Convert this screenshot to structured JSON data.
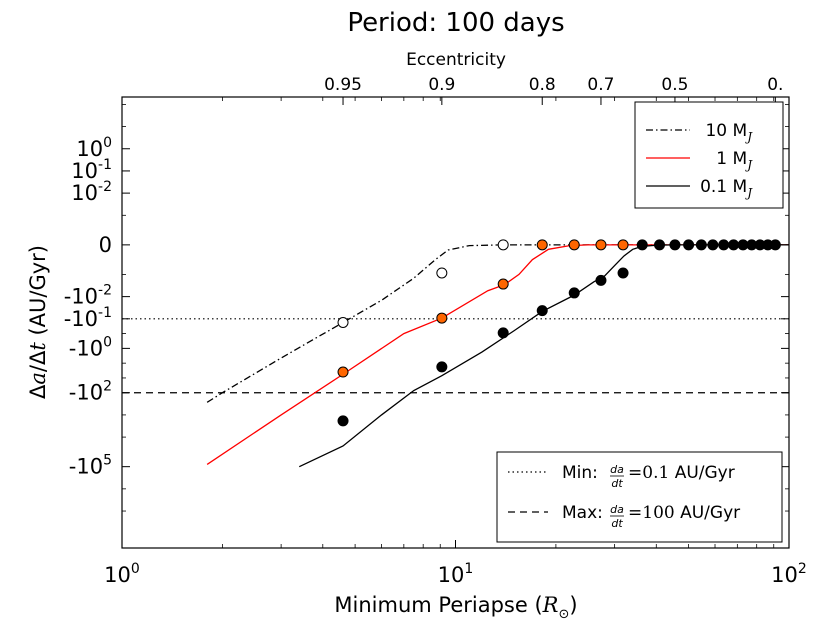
{
  "chart_data": {
    "type": "line",
    "title": "Period: 100 days",
    "top_axis_label": "Eccentricity",
    "top_ticks": [
      {
        "x": 4.6,
        "label": "0.95"
      },
      {
        "x": 9.1,
        "label": "0.9"
      },
      {
        "x": 18.2,
        "label": "0.8"
      },
      {
        "x": 27.3,
        "label": "0.7"
      },
      {
        "x": 45.5,
        "label": "0.5"
      },
      {
        "x": 91.0,
        "label": "0."
      }
    ],
    "xlabel": "Minimum Periapse (R⊙)",
    "xscale": "log",
    "xlim": [
      1,
      100
    ],
    "x_ticks": [
      {
        "x": 1,
        "base": "10",
        "exp": "0"
      },
      {
        "x": 10,
        "base": "10",
        "exp": "1"
      },
      {
        "x": 100,
        "base": "10",
        "exp": "2"
      }
    ],
    "ylabel": "Δa/Δt (AU/Gyr)",
    "yscale": "symlog (positions on plotted scale)",
    "ylim": [
      -4.1,
      2.0
    ],
    "y_ticks": [
      {
        "y": 1.3,
        "base": "10",
        "exp": "0"
      },
      {
        "y": 1.0,
        "base": "10",
        "exp": "-1"
      },
      {
        "y": 0.7,
        "base": "10",
        "exp": "-2"
      },
      {
        "y": 0.0,
        "base": "0",
        "exp": ""
      },
      {
        "y": -0.7,
        "base": "-10",
        "exp": "-2"
      },
      {
        "y": -1.0,
        "base": "-10",
        "exp": "-1"
      },
      {
        "y": -1.4,
        "base": "-10",
        "exp": "0"
      },
      {
        "y": -2.0,
        "base": "-10",
        "exp": "2"
      },
      {
        "y": -3.0,
        "base": "-10",
        "exp": "5"
      }
    ],
    "hlines": [
      {
        "name": "min",
        "y": -1.0,
        "style": "dotted",
        "legend_prefix": "Min: ",
        "rate": "0.1",
        "legend_suffix": " AU/Gyr"
      },
      {
        "name": "max",
        "y": -2.0,
        "style": "dashed",
        "legend_prefix": "Max: ",
        "rate": "100",
        "legend_suffix": " AU/Gyr"
      }
    ],
    "rate_frac": {
      "num": "da",
      "den": "dt"
    },
    "series": [
      {
        "name": "10 M_J",
        "label_base": "10 M",
        "label_sub": "J",
        "color": "#000000",
        "dash": "7,3,1.5,3",
        "line": [
          [
            1.8,
            -2.13
          ],
          [
            2.0,
            -2.0
          ],
          [
            3.0,
            -1.53
          ],
          [
            4.6,
            -1.05
          ],
          [
            6.0,
            -0.75
          ],
          [
            7.5,
            -0.45
          ],
          [
            8.7,
            -0.2
          ],
          [
            9.5,
            -0.07
          ],
          [
            11,
            -0.01
          ],
          [
            13.9,
            0.0
          ],
          [
            100,
            0.0
          ]
        ],
        "points": [
          [
            4.6,
            -1.05
          ],
          [
            9.1,
            -0.38
          ],
          [
            13.9,
            0.0
          ]
        ],
        "marker_fill": "#ffffff"
      },
      {
        "name": "1 M_J",
        "label_base": "1 M",
        "label_sub": "J",
        "color": "#ff0000",
        "dash": "",
        "line": [
          [
            1.8,
            -2.97
          ],
          [
            3.0,
            -2.3
          ],
          [
            4.6,
            -1.75
          ],
          [
            7.0,
            -1.2
          ],
          [
            9.1,
            -0.99
          ],
          [
            12.5,
            -0.62
          ],
          [
            14.0,
            -0.54
          ],
          [
            15.5,
            -0.4
          ],
          [
            17.0,
            -0.2
          ],
          [
            19,
            -0.06
          ],
          [
            22,
            -0.01
          ],
          [
            25,
            0.0
          ],
          [
            100,
            0.0
          ]
        ],
        "points": [
          [
            4.6,
            -1.72
          ],
          [
            9.1,
            -0.99
          ],
          [
            13.9,
            -0.53
          ],
          [
            18.2,
            0.0
          ],
          [
            22.7,
            0.0
          ],
          [
            27.3,
            0.0
          ],
          [
            31.8,
            0.0
          ]
        ],
        "marker_fill": "#ff6600"
      },
      {
        "name": "0.1 M_J",
        "label_base": "0.1 M",
        "label_sub": "J",
        "color": "#000000",
        "dash": "",
        "line": [
          [
            3.4,
            -3.0
          ],
          [
            4.6,
            -2.72
          ],
          [
            6.0,
            -2.3
          ],
          [
            7.5,
            -1.97
          ],
          [
            9.1,
            -1.77
          ],
          [
            12.0,
            -1.45
          ],
          [
            15.0,
            -1.16
          ],
          [
            18.2,
            -0.9
          ],
          [
            22.7,
            -0.68
          ],
          [
            26.0,
            -0.5
          ],
          [
            28.0,
            -0.42
          ],
          [
            30.0,
            -0.28
          ],
          [
            32.0,
            -0.15
          ],
          [
            34.0,
            -0.06
          ],
          [
            36.3,
            -0.02
          ],
          [
            40.0,
            -0.005
          ],
          [
            45.0,
            0.0
          ],
          [
            100,
            0.0
          ]
        ],
        "points": [
          [
            4.6,
            -2.38
          ],
          [
            9.1,
            -1.65
          ],
          [
            13.9,
            -1.19
          ],
          [
            18.2,
            -0.89
          ],
          [
            22.7,
            -0.65
          ],
          [
            27.3,
            -0.48
          ],
          [
            31.8,
            -0.38
          ],
          [
            36.3,
            0.0
          ],
          [
            40.9,
            0.0
          ],
          [
            45.5,
            0.0
          ],
          [
            50.0,
            0.0
          ],
          [
            54.6,
            0.0
          ],
          [
            59.1,
            0.0
          ],
          [
            63.7,
            0.0
          ],
          [
            68.2,
            0.0
          ],
          [
            72.8,
            0.0
          ],
          [
            77.3,
            0.0
          ],
          [
            81.9,
            0.0
          ],
          [
            86.4,
            0.0
          ],
          [
            91.0,
            0.0
          ]
        ],
        "marker_fill": "#000000"
      }
    ],
    "legend_top_position": "top-right",
    "legend_bottom_position": "bottom-right"
  }
}
